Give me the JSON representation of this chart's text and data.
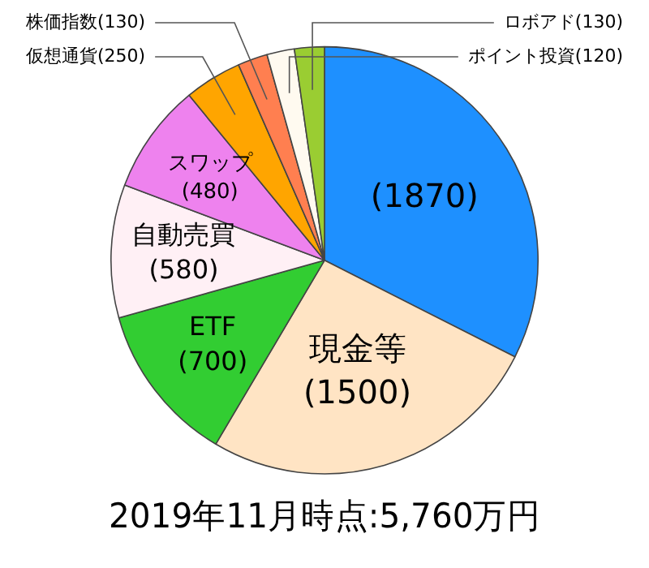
{
  "chart_data": {
    "type": "pie",
    "title": "2019年11月時点:5,760万円",
    "categories": [
      null,
      "現金等",
      "ETF",
      "自動売買",
      "スワップ",
      "仮想通貨",
      "株価指数",
      "ポイント投資",
      "ロボアド"
    ],
    "values": [
      1870,
      1500,
      700,
      580,
      480,
      250,
      130,
      120,
      130
    ],
    "colors": [
      "#1e90ff",
      "#ffe4c4",
      "#32cd32",
      "#fff0f5",
      "#ee82ee",
      "#ffa500",
      "#ff7f50",
      "#fffaf0",
      "#9acd32"
    ],
    "value_labels": [
      "(1870)",
      "(1500)",
      "(700)",
      "(580)",
      "(480)",
      "(250)",
      "(130)",
      "(120)",
      "(130)"
    ],
    "legend": false
  }
}
